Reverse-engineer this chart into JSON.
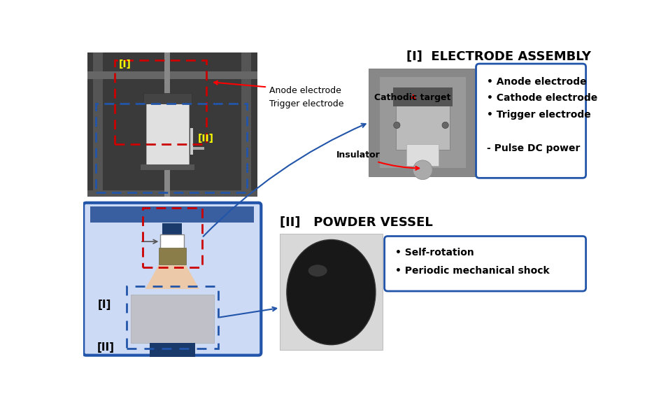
{
  "bg_color": "#ffffff",
  "title_electrode": "[I]  ELECTRODE ASSEMBLY",
  "title_powder": "[II]   POWDER VESSEL",
  "box1_lines": [
    "• Anode electrode",
    "• Cathode electrode",
    "• Trigger electrode",
    "",
    "- Pulse DC power"
  ],
  "box2_lines": [
    "• Self-rotation",
    "• Periodic mechanical shock"
  ],
  "label_anode": "Anode electrode",
  "label_trigger": "Trigger electrode",
  "label_cathodic": "Cathodic target",
  "label_insulator": "Insulator",
  "label_I": "[I]",
  "label_II": "[II]",
  "diag_bg": "#ccdaf5",
  "diag_border": "#2255aa",
  "red_dashed": "#cc0000",
  "blue_dashed": "#2255aa",
  "dark_blue": "#1a3a6b",
  "peach": "#f0c8a0",
  "olive": "#8b7d4a",
  "gray_rect": "#c0c0c8",
  "top_blue_bar": "#3a5fa0",
  "yellow": "#ffff00"
}
